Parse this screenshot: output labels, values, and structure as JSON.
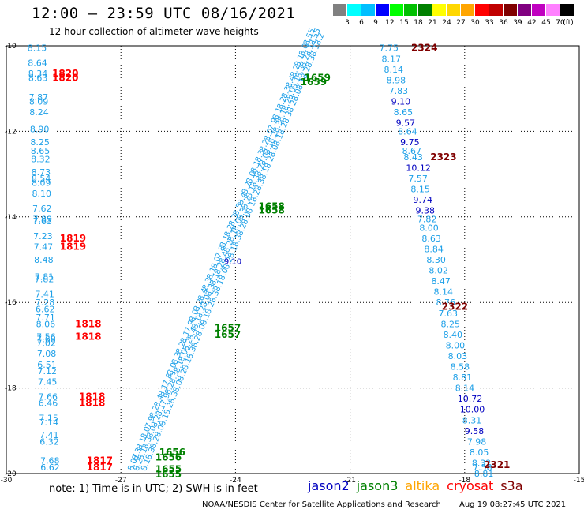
{
  "header": {
    "title": "12:00 – 23:59 UTC 08/16/2021",
    "subtitle": "12 hour collection of altimeter wave heights"
  },
  "color_scale": {
    "colors": [
      "#808080",
      "#00ffff",
      "#00bfff",
      "#0000ff",
      "#00ff00",
      "#00c000",
      "#008000",
      "#ffff00",
      "#ffd700",
      "#ffa500",
      "#ff0000",
      "#c00000",
      "#800000",
      "#800080",
      "#c000c0",
      "#ff80ff",
      "#000000"
    ],
    "labels": [
      "3",
      "6",
      "9",
      "12",
      "15",
      "18",
      "21",
      "24",
      "27",
      "30",
      "33",
      "36",
      "39",
      "42",
      "45",
      "70",
      "(ft)"
    ]
  },
  "map": {
    "lon_ticks": [
      "-30",
      "-27",
      "-24",
      "-21",
      "-18",
      "-15"
    ],
    "lat_ticks": [
      "-10",
      "-12",
      "-14",
      "-16",
      "-18",
      "-20"
    ],
    "lon_range": [
      -30,
      -15
    ],
    "lat_range": [
      -10,
      -20
    ]
  },
  "tracks": [
    {
      "id": "left-cyan",
      "satellite": "cryosat",
      "lon_start": -29.45,
      "lon_end": -29.1,
      "points": [
        {
          "lat": -10.05,
          "v": "8.15"
        },
        {
          "lat": -10.4,
          "v": "8.64"
        },
        {
          "lat": -10.65,
          "v": "8.34"
        },
        {
          "lat": -10.75,
          "v": "8.63"
        },
        {
          "lat": -11.2,
          "v": "7.87"
        },
        {
          "lat": -11.3,
          "v": "8.09"
        },
        {
          "lat": -11.55,
          "v": "8.24"
        },
        {
          "lat": -11.95,
          "v": "8.90"
        },
        {
          "lat": -12.25,
          "v": "8.25"
        },
        {
          "lat": -12.45,
          "v": "8.65"
        },
        {
          "lat": -12.65,
          "v": "8.32"
        },
        {
          "lat": -12.95,
          "v": "8.73"
        },
        {
          "lat": -13.1,
          "v": "8.54"
        },
        {
          "lat": -13.2,
          "v": "8.09"
        },
        {
          "lat": -13.45,
          "v": "8.10"
        },
        {
          "lat": -13.8,
          "v": "7.62"
        },
        {
          "lat": -14.05,
          "v": "7.89"
        },
        {
          "lat": -14.1,
          "v": "7.63"
        },
        {
          "lat": -14.45,
          "v": "7.23"
        },
        {
          "lat": -14.7,
          "v": "7.47"
        },
        {
          "lat": -15.0,
          "v": "8.48"
        },
        {
          "lat": -15.4,
          "v": "7.81"
        },
        {
          "lat": -15.45,
          "v": "7.82"
        },
        {
          "lat": -15.8,
          "v": "7.41"
        },
        {
          "lat": -16.0,
          "v": "7.28"
        },
        {
          "lat": -16.15,
          "v": "6.62"
        },
        {
          "lat": -16.35,
          "v": "7.71"
        },
        {
          "lat": -16.5,
          "v": "8.06"
        },
        {
          "lat": -16.8,
          "v": "7.56"
        },
        {
          "lat": -16.85,
          "v": "7.68"
        },
        {
          "lat": -16.95,
          "v": "7.02"
        },
        {
          "lat": -17.2,
          "v": "7.08"
        },
        {
          "lat": -17.45,
          "v": "6.51"
        },
        {
          "lat": -17.6,
          "v": "7.12"
        },
        {
          "lat": -17.85,
          "v": "7.45"
        },
        {
          "lat": -18.2,
          "v": "7.66"
        },
        {
          "lat": -18.35,
          "v": "6.46"
        },
        {
          "lat": -18.7,
          "v": "7.15"
        },
        {
          "lat": -18.8,
          "v": "7.14"
        },
        {
          "lat": -19.1,
          "v": "7.41"
        },
        {
          "lat": -19.25,
          "v": "6.32"
        },
        {
          "lat": -19.7,
          "v": "7.68"
        },
        {
          "lat": -19.85,
          "v": "6.62"
        }
      ]
    },
    {
      "id": "right-cyan",
      "satellite": "cryosat",
      "lon_start": -20.25,
      "lon_end": -17.75,
      "points": [
        {
          "lat": -10.05,
          "v": "7.75"
        },
        {
          "lat": -10.3,
          "v": "8.17"
        },
        {
          "lat": -10.55,
          "v": "8.14"
        },
        {
          "lat": -10.8,
          "v": "8.98"
        },
        {
          "lat": -11.05,
          "v": "7.83"
        },
        {
          "lat": -11.3,
          "v": "9.10"
        },
        {
          "lat": -11.55,
          "v": "8.65"
        },
        {
          "lat": -11.8,
          "v": "9.57"
        },
        {
          "lat": -12.0,
          "v": "8.64"
        },
        {
          "lat": -12.25,
          "v": "9.75"
        },
        {
          "lat": -12.45,
          "v": "8.67"
        },
        {
          "lat": -12.6,
          "v": "8.43"
        },
        {
          "lat": -12.85,
          "v": "10.12"
        },
        {
          "lat": -13.1,
          "v": "7.57"
        },
        {
          "lat": -13.35,
          "v": "8.15"
        },
        {
          "lat": -13.6,
          "v": "9.74"
        },
        {
          "lat": -13.85,
          "v": "9.38"
        },
        {
          "lat": -14.05,
          "v": "7.82"
        },
        {
          "lat": -14.25,
          "v": "8.00"
        },
        {
          "lat": -14.5,
          "v": "8.63"
        },
        {
          "lat": -14.75,
          "v": "8.84"
        },
        {
          "lat": -15.0,
          "v": "8.30"
        },
        {
          "lat": -15.25,
          "v": "8.02"
        },
        {
          "lat": -15.5,
          "v": "8.47"
        },
        {
          "lat": -15.75,
          "v": "8.14"
        },
        {
          "lat": -16.0,
          "v": "8.76"
        },
        {
          "lat": -16.25,
          "v": "7.63"
        },
        {
          "lat": -16.5,
          "v": "8.25"
        },
        {
          "lat": -16.75,
          "v": "8.40"
        },
        {
          "lat": -17.0,
          "v": "8.00"
        },
        {
          "lat": -17.25,
          "v": "8.03"
        },
        {
          "lat": -17.5,
          "v": "8.58"
        },
        {
          "lat": -17.75,
          "v": "8.81"
        },
        {
          "lat": -18.0,
          "v": "8.14"
        },
        {
          "lat": -18.25,
          "v": "10.72"
        },
        {
          "lat": -18.5,
          "v": "10.00"
        },
        {
          "lat": -18.75,
          "v": "8.31"
        },
        {
          "lat": -19.0,
          "v": "9.58"
        },
        {
          "lat": -19.25,
          "v": "7.98"
        },
        {
          "lat": -19.5,
          "v": "8.05"
        },
        {
          "lat": -19.75,
          "v": "8.32"
        },
        {
          "lat": -19.85,
          "v": "7.58"
        },
        {
          "lat": -20.0,
          "v": "8.81"
        }
      ]
    },
    {
      "id": "diag-a",
      "satellite": "cryosat",
      "start": [
        -26.7,
        -19.95
      ],
      "end": [
        -22.1,
        -10.0
      ],
      "points": [
        {
          "v": "8.07"
        },
        {
          "v": "8.3"
        },
        {
          "v": "8.1"
        },
        {
          "v": "8.0"
        },
        {
          "v": "7.9"
        },
        {
          "v": "8.2"
        },
        {
          "v": "8.4"
        },
        {
          "v": "8.1"
        },
        {
          "v": "7.8"
        },
        {
          "v": "8.0"
        },
        {
          "v": "8.3"
        },
        {
          "v": "8.2"
        },
        {
          "v": "8.1"
        },
        {
          "v": "7.9"
        },
        {
          "v": "8.0"
        },
        {
          "v": "8.2"
        },
        {
          "v": "8.4"
        },
        {
          "v": "8.3"
        },
        {
          "v": "8.1"
        },
        {
          "v": "8.0"
        },
        {
          "v": "7.8"
        },
        {
          "v": "8.1"
        },
        {
          "v": "8.2"
        },
        {
          "v": "8.3"
        },
        {
          "v": "8.5"
        },
        {
          "v": "8.4"
        },
        {
          "v": "8.2"
        },
        {
          "v": "8.0"
        },
        {
          "v": "8.1"
        },
        {
          "v": "8.3"
        },
        {
          "v": "8.2"
        },
        {
          "v": "8.0"
        },
        {
          "v": "7.9"
        },
        {
          "v": "8.1"
        },
        {
          "v": "8.2"
        },
        {
          "v": "8.3"
        },
        {
          "v": "8.4"
        },
        {
          "v": "8.2"
        },
        {
          "v": "8.1"
        },
        {
          "v": "8.0"
        },
        {
          "v": "8.55"
        }
      ]
    },
    {
      "id": "diag-b",
      "satellite": "cryosat",
      "start": [
        -26.55,
        -19.95
      ],
      "end": [
        -21.95,
        -10.0
      ],
      "points": [
        {
          "v": "8.2"
        },
        {
          "v": "8.1"
        },
        {
          "v": "8.3"
        },
        {
          "v": "8.0"
        },
        {
          "v": "8.2"
        },
        {
          "v": "8.1"
        },
        {
          "v": "7.9"
        },
        {
          "v": "8.2"
        },
        {
          "v": "8.3"
        },
        {
          "v": "8.1"
        },
        {
          "v": "8.0"
        },
        {
          "v": "8.2"
        },
        {
          "v": "8.4"
        },
        {
          "v": "8.1"
        },
        {
          "v": "8.2"
        },
        {
          "v": "8.0"
        },
        {
          "v": "8.3"
        },
        {
          "v": "8.1"
        },
        {
          "v": "8.2"
        },
        {
          "v": "8.4"
        },
        {
          "v": "8.2"
        },
        {
          "v": "8.1"
        },
        {
          "v": "8.0"
        },
        {
          "v": "8.3"
        },
        {
          "v": "8.2"
        },
        {
          "v": "8.1"
        },
        {
          "v": "8.3"
        },
        {
          "v": "8.2"
        },
        {
          "v": "8.0"
        },
        {
          "v": "8.1"
        },
        {
          "v": "8.2"
        },
        {
          "v": "8.3"
        },
        {
          "v": "8.1"
        },
        {
          "v": "8.2"
        },
        {
          "v": "8.0"
        },
        {
          "v": "8.1"
        },
        {
          "v": "8.3"
        },
        {
          "v": "8.2"
        },
        {
          "v": "8.1"
        },
        {
          "v": "8.55"
        }
      ]
    },
    {
      "id": "diag-c",
      "satellite": "cryosat",
      "start": [
        -26.35,
        -19.95
      ],
      "end": [
        -21.8,
        -10.0
      ],
      "points": [
        {
          "v": "8.1"
        },
        {
          "v": "8.3"
        },
        {
          "v": "8.2"
        },
        {
          "v": "8.0"
        },
        {
          "v": "8.1"
        },
        {
          "v": "8.2"
        },
        {
          "v": "8.3"
        },
        {
          "v": "8.0"
        },
        {
          "v": "8.2"
        },
        {
          "v": "8.1"
        },
        {
          "v": "8.3"
        },
        {
          "v": "8.2"
        },
        {
          "v": "8.0"
        },
        {
          "v": "8.1"
        },
        {
          "v": "8.2"
        },
        {
          "v": "8.3"
        },
        {
          "v": "8.1"
        },
        {
          "v": "8.0"
        },
        {
          "v": "8.2"
        },
        {
          "v": "8.1"
        },
        {
          "v": "8.3"
        },
        {
          "v": "8.2"
        },
        {
          "v": "8.0"
        },
        {
          "v": "8.1"
        },
        {
          "v": "8.2"
        },
        {
          "v": "8.3"
        },
        {
          "v": "8.1"
        },
        {
          "v": "8.2"
        },
        {
          "v": "8.0"
        },
        {
          "v": "8.1"
        },
        {
          "v": "8.2"
        },
        {
          "v": "8.3"
        },
        {
          "v": "8.2"
        },
        {
          "v": "8.0"
        },
        {
          "v": "8.1"
        },
        {
          "v": "8.2"
        },
        {
          "v": "8.3"
        },
        {
          "v": "8.1"
        },
        {
          "v": "8.2"
        }
      ]
    }
  ],
  "special_values": [
    {
      "lon": -24.3,
      "lat": -15.1,
      "v": "9.10",
      "color": "#0000c0"
    }
  ],
  "time_labels": [
    {
      "lon": -19.4,
      "lat": -10.05,
      "text": "2324",
      "color": "#800000"
    },
    {
      "lon": -18.9,
      "lat": -12.6,
      "text": "2323",
      "color": "#800000"
    },
    {
      "lon": -18.6,
      "lat": -16.1,
      "text": "2322",
      "color": "#800000"
    },
    {
      "lon": -17.5,
      "lat": -19.8,
      "text": "2321",
      "color": "#800000"
    },
    {
      "lon": -28.8,
      "lat": -10.65,
      "text": "1820",
      "color": "#ff0000"
    },
    {
      "lon": -28.8,
      "lat": -10.75,
      "text": "1820",
      "color": "#ff0000"
    },
    {
      "lon": -28.6,
      "lat": -14.5,
      "text": "1819",
      "color": "#ff0000"
    },
    {
      "lon": -28.6,
      "lat": -14.7,
      "text": "1819",
      "color": "#ff0000"
    },
    {
      "lon": -28.2,
      "lat": -16.5,
      "text": "1818",
      "color": "#ff0000"
    },
    {
      "lon": -28.2,
      "lat": -16.8,
      "text": "1818",
      "color": "#ff0000"
    },
    {
      "lon": -28.1,
      "lat": -18.2,
      "text": "1818",
      "color": "#ff0000"
    },
    {
      "lon": -28.1,
      "lat": -18.35,
      "text": "1818",
      "color": "#ff0000"
    },
    {
      "lon": -27.9,
      "lat": -19.7,
      "text": "1817",
      "color": "#ff0000"
    },
    {
      "lon": -27.9,
      "lat": -19.85,
      "text": "1817",
      "color": "#ff0000"
    },
    {
      "lon": -22.2,
      "lat": -10.75,
      "text": "1659",
      "color": "#008000"
    },
    {
      "lon": -22.3,
      "lat": -10.85,
      "text": "1659",
      "color": "#008000"
    },
    {
      "lon": -23.4,
      "lat": -13.75,
      "text": "1658",
      "color": "#008000"
    },
    {
      "lon": -23.4,
      "lat": -13.85,
      "text": "1658",
      "color": "#008000"
    },
    {
      "lon": -24.55,
      "lat": -16.6,
      "text": "1657",
      "color": "#008000"
    },
    {
      "lon": -24.55,
      "lat": -16.75,
      "text": "1657",
      "color": "#008000"
    },
    {
      "lon": -26.0,
      "lat": -19.5,
      "text": "1656",
      "color": "#008000"
    },
    {
      "lon": -26.1,
      "lat": -19.62,
      "text": "1656",
      "color": "#008000"
    },
    {
      "lon": -26.1,
      "lat": -19.9,
      "text": "1655",
      "color": "#008000"
    },
    {
      "lon": -26.1,
      "lat": -20.02,
      "text": "1655",
      "color": "#008000"
    }
  ],
  "footer": {
    "note": "note: 1) Time is in UTC; 2) SWH is in feet",
    "satellites": [
      {
        "name": "jason2",
        "color": "#0000c0"
      },
      {
        "name": "jason3",
        "color": "#008000"
      },
      {
        "name": "altika",
        "color": "#ffa500"
      },
      {
        "name": "cryosat",
        "color": "#ff0000"
      },
      {
        "name": "s3a",
        "color": "#800000"
      }
    ],
    "credit": "NOAA/NESDIS Center for Satellite Applications and Research",
    "timestamp": "Aug 19 08:27:45 UTC 2021"
  }
}
